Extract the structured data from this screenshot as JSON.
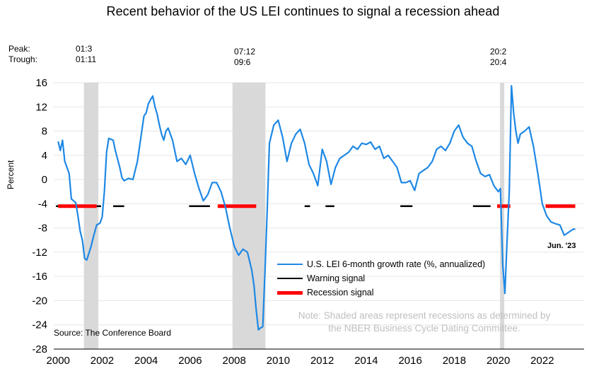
{
  "title": "Recent behavior of the US LEI continues to signal a recession ahead",
  "peak_label": "Peak:",
  "trough_label": "Trough:",
  "recessions": [
    {
      "peak": "01:3",
      "trough": "01:11",
      "start": 2001.17,
      "end": 2001.83
    },
    {
      "peak": "07:12",
      "trough": "09:6",
      "start": 2007.92,
      "end": 2009.42
    },
    {
      "peak": "20:2",
      "trough": "20:4",
      "start": 2020.08,
      "end": 2020.25
    }
  ],
  "legend": {
    "lei": "U.S. LEI 6-month growth rate (%, annualized)",
    "warning": "Warning signal",
    "recession": "Recession signal"
  },
  "note_line1": "Note: Shaded areas represent recessions as determined by",
  "note_line2": "the NBER Business Cycle Dating Committee.",
  "source": "Source: The Conference Board",
  "end_label": "Jun. '23",
  "colors": {
    "lei": "#1e88e5",
    "warning": "#000000",
    "recession": "#ff0000",
    "shade": "#d9d9d9",
    "grid": "#e6e6e6"
  },
  "chart_data": {
    "type": "line",
    "ylabel": "Percent",
    "xlim": [
      1999.8,
      2023.9
    ],
    "ylim": [
      -28,
      16
    ],
    "yticks": [
      16,
      12,
      8,
      4,
      0,
      -4,
      -8,
      -12,
      -16,
      -20,
      -24,
      -28
    ],
    "xticks": [
      2000,
      2002,
      2004,
      2006,
      2008,
      2010,
      2012,
      2014,
      2016,
      2018,
      2020,
      2022
    ],
    "grid": true,
    "legend_position": "bottom-center",
    "series": [
      {
        "name": "U.S. LEI 6-month growth rate (%, annualized)",
        "x": [
          2000.0,
          2000.1,
          2000.2,
          2000.3,
          2000.5,
          2000.6,
          2000.8,
          2000.9,
          2001.0,
          2001.1,
          2001.2,
          2001.3,
          2001.5,
          2001.6,
          2001.75,
          2001.9,
          2002.0,
          2002.1,
          2002.2,
          2002.3,
          2002.5,
          2002.6,
          2002.8,
          2002.9,
          2003.0,
          2003.2,
          2003.4,
          2003.6,
          2003.7,
          2003.8,
          2003.9,
          2004.0,
          2004.1,
          2004.2,
          2004.3,
          2004.4,
          2004.5,
          2004.6,
          2004.7,
          2004.8,
          2004.9,
          2005.0,
          2005.2,
          2005.4,
          2005.6,
          2005.8,
          2006.0,
          2006.2,
          2006.4,
          2006.6,
          2006.8,
          2007.0,
          2007.2,
          2007.4,
          2007.6,
          2007.8,
          2008.0,
          2008.2,
          2008.4,
          2008.6,
          2008.8,
          2008.9,
          2009.0,
          2009.1,
          2009.2,
          2009.3,
          2009.4,
          2009.5,
          2009.6,
          2009.8,
          2010.0,
          2010.2,
          2010.4,
          2010.6,
          2010.8,
          2011.0,
          2011.2,
          2011.4,
          2011.6,
          2011.8,
          2012.0,
          2012.2,
          2012.4,
          2012.6,
          2012.8,
          2013.0,
          2013.2,
          2013.4,
          2013.6,
          2013.8,
          2014.0,
          2014.2,
          2014.4,
          2014.6,
          2014.8,
          2015.0,
          2015.2,
          2015.4,
          2015.6,
          2015.8,
          2016.0,
          2016.2,
          2016.4,
          2016.6,
          2016.8,
          2017.0,
          2017.2,
          2017.4,
          2017.6,
          2017.8,
          2018.0,
          2018.2,
          2018.4,
          2018.6,
          2018.8,
          2019.0,
          2019.2,
          2019.4,
          2019.6,
          2019.8,
          2020.0,
          2020.1,
          2020.2,
          2020.3,
          2020.4,
          2020.5,
          2020.6,
          2020.7,
          2020.8,
          2020.9,
          2021.0,
          2021.2,
          2021.4,
          2021.6,
          2021.8,
          2022.0,
          2022.2,
          2022.4,
          2022.6,
          2022.8,
          2023.0,
          2023.2,
          2023.4,
          2023.5
        ],
        "values": [
          6.3,
          4.8,
          6.5,
          3.0,
          1.0,
          -3.2,
          -3.8,
          -6.0,
          -8.5,
          -10.0,
          -13.0,
          -13.3,
          -11.0,
          -9.5,
          -7.5,
          -7.2,
          -6.2,
          -2.0,
          4.5,
          6.8,
          6.5,
          4.8,
          2.0,
          0.3,
          -0.2,
          0.2,
          0.0,
          3.0,
          5.5,
          8.0,
          10.5,
          11.0,
          12.5,
          13.2,
          13.8,
          12.0,
          10.8,
          9.0,
          7.5,
          6.5,
          8.0,
          8.5,
          6.5,
          3.0,
          3.5,
          2.5,
          4.0,
          1.0,
          -1.5,
          -3.5,
          -2.5,
          -0.5,
          -0.5,
          -2.0,
          -4.5,
          -8.0,
          -11.0,
          -12.5,
          -11.5,
          -12.0,
          -15.0,
          -17.5,
          -21.5,
          -24.8,
          -24.5,
          -24.3,
          -15.0,
          -5.0,
          6.0,
          9.0,
          9.8,
          7.0,
          3.0,
          6.0,
          7.5,
          8.3,
          6.0,
          2.5,
          1.0,
          -1.0,
          5.0,
          3.0,
          -0.8,
          2.0,
          3.5,
          4.0,
          4.5,
          5.5,
          5.0,
          6.0,
          5.8,
          6.2,
          5.0,
          5.5,
          3.5,
          4.0,
          3.0,
          2.0,
          -0.5,
          -0.5,
          -0.2,
          -1.8,
          1.0,
          1.5,
          2.0,
          3.0,
          5.0,
          5.5,
          4.8,
          6.0,
          8.0,
          9.0,
          7.0,
          6.0,
          5.5,
          3.0,
          1.0,
          0.5,
          0.8,
          -1.0,
          -2.0,
          -1.5,
          -14.0,
          -18.8,
          -10.0,
          -2.0,
          15.5,
          11.0,
          8.0,
          6.0,
          7.5,
          8.0,
          8.7,
          5.5,
          1.0,
          -4.0,
          -6.0,
          -7.0,
          -7.3,
          -7.5,
          -9.2,
          -8.7,
          -8.2,
          -8.2
        ]
      }
    ],
    "signals_y": -4.4,
    "warning_periods": [
      [
        1999.9,
        2001.2
      ],
      [
        2001.75,
        2001.95
      ],
      [
        2002.5,
        2003.0
      ],
      [
        2005.95,
        2006.9
      ],
      [
        2011.2,
        2011.45
      ],
      [
        2012.15,
        2012.55
      ],
      [
        2015.55,
        2016.1
      ],
      [
        2018.85,
        2019.65
      ]
    ],
    "recession_signal_periods": [
      [
        2000.0,
        2001.75
      ],
      [
        2007.25,
        2009.0
      ],
      [
        2019.95,
        2020.55
      ],
      [
        2022.15,
        2023.5
      ]
    ]
  }
}
